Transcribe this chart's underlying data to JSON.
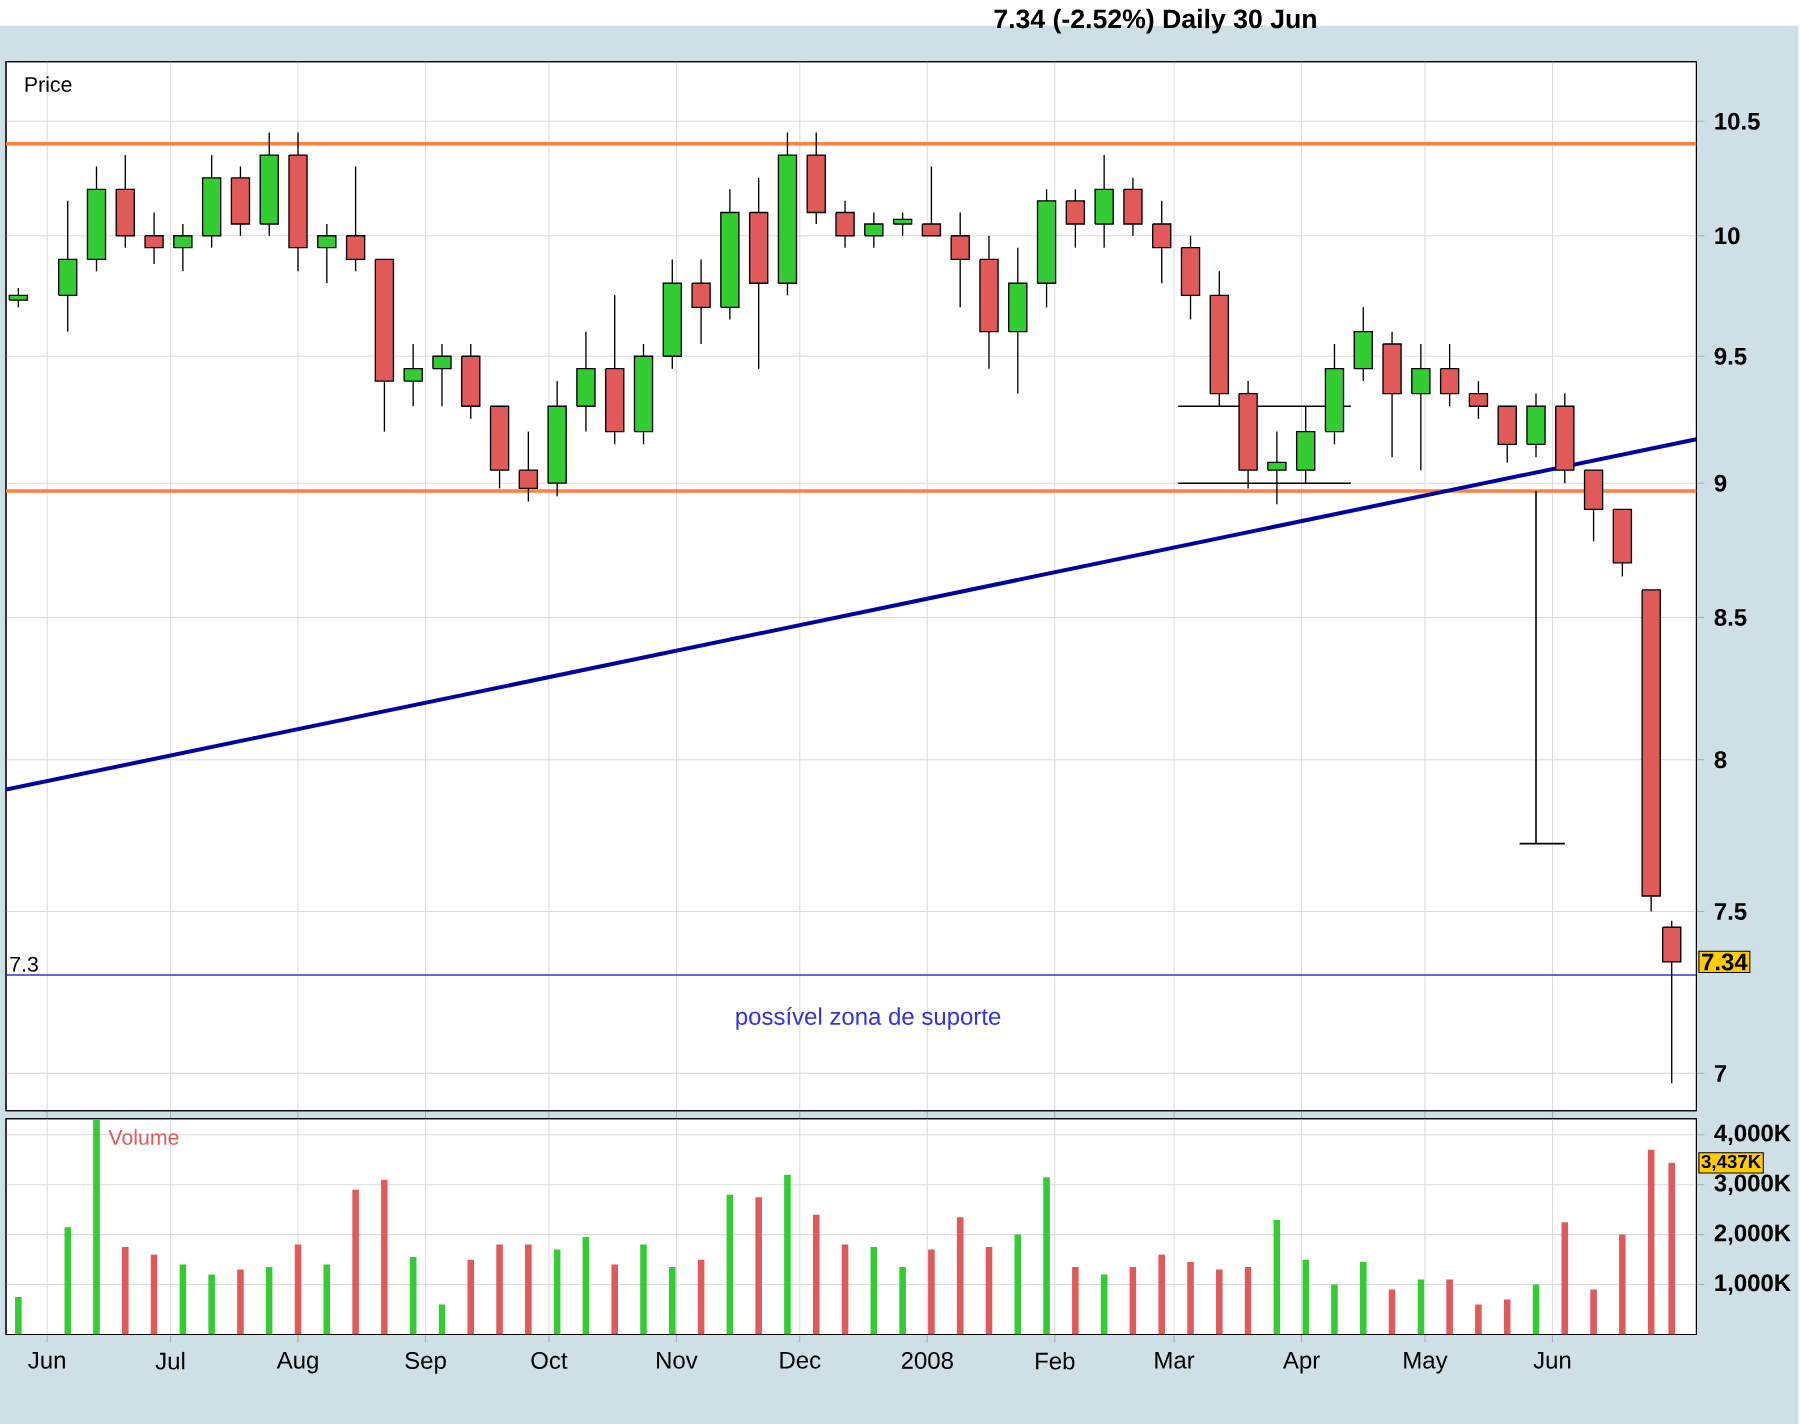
{
  "chart_data": [
    {
      "type": "candlestick",
      "title": "7.34 (-2.52%)   Daily  30 Jun",
      "ylabel": "Price",
      "log": "y",
      "grid": true,
      "tick_labels": "y",
      "xlim": [
        "2007-05-22",
        "2008-07-06"
      ],
      "xticks": [
        {
          "value": "2007-06-01",
          "label": null
        },
        {
          "value": "2007-07-01",
          "label": null
        },
        {
          "value": "2007-08-01",
          "label": null
        },
        {
          "value": "2007-09-01",
          "label": null
        },
        {
          "value": "2007-10-01",
          "label": null
        },
        {
          "value": "2007-11-01",
          "label": null
        },
        {
          "value": "2007-12-01",
          "label": null
        },
        {
          "value": "2008-01-01",
          "label": null
        },
        {
          "value": "2008-02-01",
          "label": null
        },
        {
          "value": "2008-03-01",
          "label": null
        },
        {
          "value": "2008-04-01",
          "label": null
        },
        {
          "value": "2008-05-01",
          "label": null
        },
        {
          "value": "2008-06-01",
          "label": null
        }
      ],
      "ylim": [
        6.89,
        10.77
      ],
      "yticks": [
        7,
        7.5,
        8,
        8.5,
        9,
        9.5,
        10,
        10.5
      ],
      "x": [
        "2007-05-25",
        "2007-06-06",
        "2007-06-13",
        "2007-06-20",
        "2007-06-27",
        "2007-07-04",
        "2007-07-11",
        "2007-07-18",
        "2007-07-25",
        "2007-08-01",
        "2007-08-08",
        "2007-08-15",
        "2007-08-22",
        "2007-08-29",
        "2007-09-05",
        "2007-09-12",
        "2007-09-19",
        "2007-09-26",
        "2007-10-03",
        "2007-10-10",
        "2007-10-17",
        "2007-10-24",
        "2007-10-31",
        "2007-11-07",
        "2007-11-14",
        "2007-11-21",
        "2007-11-28",
        "2007-12-05",
        "2007-12-12",
        "2007-12-19",
        "2007-12-26",
        "2008-01-02",
        "2008-01-09",
        "2008-01-16",
        "2008-01-23",
        "2008-01-30",
        "2008-02-06",
        "2008-02-13",
        "2008-02-20",
        "2008-02-27",
        "2008-03-05",
        "2008-03-12",
        "2008-03-19",
        "2008-03-26",
        "2008-04-02",
        "2008-04-09",
        "2008-04-16",
        "2008-04-23",
        "2008-04-30",
        "2008-05-07",
        "2008-05-14",
        "2008-05-21",
        "2008-05-28",
        "2008-06-04",
        "2008-06-11",
        "2008-06-18",
        "2008-06-25",
        "2008-06-30"
      ],
      "ohlc": [
        [
          9.73,
          9.78,
          9.7,
          9.75
        ],
        [
          9.75,
          10.15,
          9.6,
          9.9
        ],
        [
          9.9,
          10.3,
          9.85,
          10.2
        ],
        [
          10.2,
          10.35,
          9.95,
          10.0
        ],
        [
          10.0,
          10.1,
          9.88,
          9.95
        ],
        [
          9.95,
          10.05,
          9.85,
          10.0
        ],
        [
          10.0,
          10.35,
          9.95,
          10.25
        ],
        [
          10.25,
          10.3,
          10.0,
          10.05
        ],
        [
          10.05,
          10.45,
          10.0,
          10.35
        ],
        [
          10.35,
          10.45,
          9.85,
          9.95
        ],
        [
          9.95,
          10.05,
          9.8,
          10.0
        ],
        [
          10.0,
          10.3,
          9.85,
          9.9
        ],
        [
          9.9,
          9.9,
          9.2,
          9.4
        ],
        [
          9.4,
          9.55,
          9.3,
          9.45
        ],
        [
          9.45,
          9.55,
          9.3,
          9.5
        ],
        [
          9.5,
          9.55,
          9.25,
          9.3
        ],
        [
          9.3,
          9.3,
          8.98,
          9.05
        ],
        [
          9.05,
          9.2,
          8.93,
          8.98
        ],
        [
          9.0,
          9.4,
          8.95,
          9.3
        ],
        [
          9.3,
          9.6,
          9.2,
          9.45
        ],
        [
          9.45,
          9.75,
          9.15,
          9.2
        ],
        [
          9.2,
          9.55,
          9.15,
          9.5
        ],
        [
          9.5,
          9.9,
          9.45,
          9.8
        ],
        [
          9.8,
          9.9,
          9.55,
          9.7
        ],
        [
          9.7,
          10.2,
          9.65,
          10.1
        ],
        [
          10.1,
          10.25,
          9.45,
          9.8
        ],
        [
          9.8,
          10.45,
          9.75,
          10.35
        ],
        [
          10.35,
          10.45,
          10.05,
          10.1
        ],
        [
          10.1,
          10.15,
          9.95,
          10.0
        ],
        [
          10.0,
          10.1,
          9.95,
          10.05
        ],
        [
          10.05,
          10.1,
          10.0,
          10.07
        ],
        [
          10.05,
          10.3,
          10.0,
          10.0
        ],
        [
          10.0,
          10.1,
          9.7,
          9.9
        ],
        [
          9.9,
          10.0,
          9.45,
          9.6
        ],
        [
          9.6,
          9.95,
          9.35,
          9.8
        ],
        [
          9.8,
          10.2,
          9.7,
          10.15
        ],
        [
          10.15,
          10.2,
          9.95,
          10.05
        ],
        [
          10.05,
          10.35,
          9.95,
          10.2
        ],
        [
          10.2,
          10.25,
          10.0,
          10.05
        ],
        [
          10.05,
          10.15,
          9.8,
          9.95
        ],
        [
          9.95,
          10.0,
          9.65,
          9.75
        ],
        [
          9.75,
          9.85,
          9.3,
          9.35
        ],
        [
          9.35,
          9.4,
          8.98,
          9.05
        ],
        [
          9.05,
          9.2,
          8.92,
          9.08
        ],
        [
          9.05,
          9.3,
          9.0,
          9.2
        ],
        [
          9.2,
          9.55,
          9.15,
          9.45
        ],
        [
          9.45,
          9.7,
          9.4,
          9.6
        ],
        [
          9.55,
          9.6,
          9.1,
          9.35
        ],
        [
          9.35,
          9.55,
          9.05,
          9.45
        ],
        [
          9.45,
          9.55,
          9.3,
          9.35
        ],
        [
          9.35,
          9.4,
          9.25,
          9.3
        ],
        [
          9.3,
          9.3,
          9.08,
          9.15
        ],
        [
          9.15,
          9.35,
          9.1,
          9.3
        ],
        [
          9.3,
          9.35,
          9.0,
          9.05
        ],
        [
          9.05,
          9.05,
          8.78,
          8.9
        ],
        [
          8.9,
          8.9,
          8.65,
          8.7
        ],
        [
          8.6,
          8.6,
          7.5,
          7.55
        ],
        [
          7.45,
          7.47,
          6.97,
          7.34
        ]
      ],
      "colors": [
        "#33cc33",
        "#33cc33",
        "#33cc33",
        "#e05a5a",
        "#e05a5a",
        "#33cc33",
        "#33cc33",
        "#e05a5a",
        "#33cc33",
        "#e05a5a",
        "#33cc33",
        "#e05a5a",
        "#e05a5a",
        "#33cc33",
        "#33cc33",
        "#e05a5a",
        "#e05a5a",
        "#e05a5a",
        "#33cc33",
        "#33cc33",
        "#e05a5a",
        "#33cc33",
        "#33cc33",
        "#e05a5a",
        "#33cc33",
        "#e05a5a",
        "#33cc33",
        "#e05a5a",
        "#e05a5a",
        "#33cc33",
        "#33cc33",
        "#e05a5a",
        "#e05a5a",
        "#e05a5a",
        "#33cc33",
        "#33cc33",
        "#e05a5a",
        "#33cc33",
        "#e05a5a",
        "#e05a5a",
        "#e05a5a",
        "#e05a5a",
        "#e05a5a",
        "#33cc33",
        "#33cc33",
        "#33cc33",
        "#33cc33",
        "#e05a5a",
        "#33cc33",
        "#e05a5a",
        "#e05a5a",
        "#e05a5a",
        "#33cc33",
        "#e05a5a",
        "#e05a5a",
        "#e05a5a",
        "#e05a5a",
        "#e05a5a"
      ],
      "series": [
        {
          "type": "line",
          "color": "#0000a0",
          "x": [
            "2007-05-22",
            "2008-07-06"
          ],
          "values": [
            7.9,
            9.17
          ]
        },
        {
          "type": "line",
          "color": "#000000",
          "x": [
            "2008-03-02",
            "2008-04-13"
          ],
          "values": [
            9.3,
            9.3
          ]
        },
        {
          "type": "line",
          "color": "#000000",
          "x": [
            "2008-03-02",
            "2008-04-13"
          ],
          "values": [
            9.0,
            9.0
          ]
        },
        {
          "type": "line",
          "color": "#000000",
          "x": [
            "2008-05-28",
            "2008-05-28"
          ],
          "values": [
            8.97,
            7.72
          ]
        },
        {
          "type": "line",
          "color": "#000000",
          "x": [
            "2008-05-24",
            "2008-06-04"
          ],
          "values": [
            7.72,
            7.72
          ]
        }
      ],
      "ref_lines": [
        {
          "axis": "y",
          "value": 10.4,
          "color": "#ff8040"
        },
        {
          "axis": "y",
          "value": 8.97,
          "color": "#ff8040"
        },
        {
          "axis": "y",
          "value": 7.3,
          "label": "7.3",
          "color": "#3333dd"
        }
      ],
      "annotations": [
        "possível zona de suporte",
        {
          "text": "7.34",
          "x": "2008-06-30",
          "y": 7.34
        }
      ]
    },
    {
      "type": "bar",
      "ylabel": "Volume",
      "grid": true,
      "xlim": [
        "2007-05-22",
        "2008-07-06"
      ],
      "xticks": [
        {
          "value": "2007-06-01",
          "label": "Jun"
        },
        {
          "value": "2007-07-01",
          "label": "Jul"
        },
        {
          "value": "2007-08-01",
          "label": "Aug"
        },
        {
          "value": "2007-09-01",
          "label": "Sep"
        },
        {
          "value": "2007-10-01",
          "label": "Oct"
        },
        {
          "value": "2007-11-01",
          "label": "Nov"
        },
        {
          "value": "2007-12-01",
          "label": "Dec"
        },
        {
          "value": "2008-01-01",
          "label": "2008"
        },
        {
          "value": "2008-02-01",
          "label": "Feb"
        },
        {
          "value": "2008-03-01",
          "label": "Mar"
        },
        {
          "value": "2008-04-01",
          "label": "Apr"
        },
        {
          "value": "2008-05-01",
          "label": "May"
        },
        {
          "value": "2008-06-01",
          "label": "Jun"
        }
      ],
      "ylim": [
        0,
        4320
      ],
      "yticks": [
        {
          "value": 1000,
          "label": "1,000K"
        },
        {
          "value": 2000,
          "label": "2,000K"
        },
        {
          "value": 3000,
          "label": "3,000K"
        },
        {
          "value": 4000,
          "label": "4,000K"
        }
      ],
      "x": [
        "2007-05-25",
        "2007-06-06",
        "2007-06-13",
        "2007-06-20",
        "2007-06-27",
        "2007-07-04",
        "2007-07-11",
        "2007-07-18",
        "2007-07-25",
        "2007-08-01",
        "2007-08-08",
        "2007-08-15",
        "2007-08-22",
        "2007-08-29",
        "2007-09-05",
        "2007-09-12",
        "2007-09-19",
        "2007-09-26",
        "2007-10-03",
        "2007-10-10",
        "2007-10-17",
        "2007-10-24",
        "2007-10-31",
        "2007-11-07",
        "2007-11-14",
        "2007-11-21",
        "2007-11-28",
        "2007-12-05",
        "2007-12-12",
        "2007-12-19",
        "2007-12-26",
        "2008-01-02",
        "2008-01-09",
        "2008-01-16",
        "2008-01-23",
        "2008-01-30",
        "2008-02-06",
        "2008-02-13",
        "2008-02-20",
        "2008-02-27",
        "2008-03-05",
        "2008-03-12",
        "2008-03-19",
        "2008-03-26",
        "2008-04-02",
        "2008-04-09",
        "2008-04-16",
        "2008-04-23",
        "2008-04-30",
        "2008-05-07",
        "2008-05-14",
        "2008-05-21",
        "2008-05-28",
        "2008-06-04",
        "2008-06-11",
        "2008-06-18",
        "2008-06-25",
        "2008-06-30"
      ],
      "values": [
        750,
        2150,
        4300,
        1750,
        1600,
        1400,
        1200,
        1300,
        1350,
        1800,
        1400,
        2900,
        3100,
        1550,
        600,
        1500,
        1800,
        1800,
        1700,
        1950,
        1400,
        1800,
        1350,
        1500,
        2800,
        2750,
        3200,
        2400,
        1800,
        1750,
        1350,
        1700,
        2350,
        1750,
        2000,
        3150,
        1350,
        1200,
        1350,
        1600,
        1450,
        1300,
        1350,
        2300,
        1500,
        1000,
        1450,
        900,
        1100,
        1100,
        600,
        700,
        1000,
        2250,
        900,
        2000,
        3700,
        3437
      ],
      "colors": [
        "#33cc33",
        "#33cc33",
        "#33cc33",
        "#e05a5a",
        "#e05a5a",
        "#33cc33",
        "#33cc33",
        "#e05a5a",
        "#33cc33",
        "#e05a5a",
        "#33cc33",
        "#e05a5a",
        "#e05a5a",
        "#33cc33",
        "#33cc33",
        "#e05a5a",
        "#e05a5a",
        "#e05a5a",
        "#33cc33",
        "#33cc33",
        "#e05a5a",
        "#33cc33",
        "#33cc33",
        "#e05a5a",
        "#33cc33",
        "#e05a5a",
        "#33cc33",
        "#e05a5a",
        "#e05a5a",
        "#33cc33",
        "#33cc33",
        "#e05a5a",
        "#e05a5a",
        "#e05a5a",
        "#33cc33",
        "#33cc33",
        "#e05a5a",
        "#33cc33",
        "#e05a5a",
        "#e05a5a",
        "#e05a5a",
        "#e05a5a",
        "#e05a5a",
        "#33cc33",
        "#33cc33",
        "#33cc33",
        "#33cc33",
        "#e05a5a",
        "#33cc33",
        "#e05a5a",
        "#e05a5a",
        "#e05a5a",
        "#33cc33",
        "#e05a5a",
        "#e05a5a",
        "#e05a5a",
        "#e05a5a",
        "#e05a5a"
      ],
      "annotations": [
        {
          "text": "3,437K",
          "x": "2008-06-30",
          "y": 3437
        }
      ]
    }
  ]
}
